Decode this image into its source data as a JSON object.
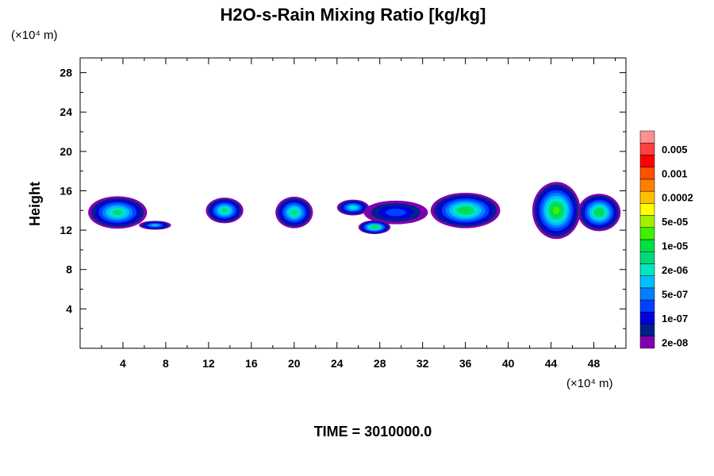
{
  "chart_data": {
    "type": "heatmap",
    "title": "H2O-s-Rain Mixing Ratio [kg/kg]",
    "ylabel": "Height",
    "x_unit": "(×10⁴ m)",
    "y_unit": "(×10⁴ m)",
    "footer": "TIME = 3010000.0",
    "xlim": [
      0,
      51
    ],
    "ylim": [
      0,
      29.5
    ],
    "x_ticks": [
      "4",
      "8",
      "12",
      "16",
      "20",
      "24",
      "28",
      "32",
      "36",
      "40",
      "44",
      "48"
    ],
    "y_ticks": [
      "4",
      "8",
      "12",
      "16",
      "20",
      "24",
      "28"
    ],
    "colorbar": {
      "colors": [
        "#8000b0",
        "#00208c",
        "#0000dc",
        "#0040ff",
        "#0080ff",
        "#00c0ff",
        "#00e8c0",
        "#00d880",
        "#00e040",
        "#40f000",
        "#a0f000",
        "#ffff00",
        "#ffc000",
        "#ff8000",
        "#ff5000",
        "#ff0000",
        "#ff4040",
        "#ff9090"
      ],
      "labels": [
        "2e-08",
        "1e-07",
        "5e-07",
        "2e-06",
        "1e-05",
        "5e-05",
        "0.0002",
        "0.001",
        "0.005"
      ]
    },
    "clouds": [
      {
        "x": 3.5,
        "y": 13.8,
        "w": 5.5,
        "h": 3.3,
        "peak": 7
      },
      {
        "x": 13.5,
        "y": 14.0,
        "w": 3.5,
        "h": 2.6,
        "peak": 7
      },
      {
        "x": 20.0,
        "y": 13.8,
        "w": 3.5,
        "h": 3.2,
        "peak": 7
      },
      {
        "x": 25.5,
        "y": 14.3,
        "w": 3.0,
        "h": 1.6,
        "peak": 6
      },
      {
        "x": 29.5,
        "y": 13.8,
        "w": 6.0,
        "h": 2.4,
        "peak": 3
      },
      {
        "x": 36.0,
        "y": 14.0,
        "w": 6.5,
        "h": 3.6,
        "peak": 8
      },
      {
        "x": 44.5,
        "y": 14.0,
        "w": 4.5,
        "h": 5.8,
        "peak": 9
      },
      {
        "x": 48.5,
        "y": 13.8,
        "w": 4.0,
        "h": 3.8,
        "peak": 8
      },
      {
        "x": 27.5,
        "y": 12.3,
        "w": 3.0,
        "h": 1.4,
        "peak": 8
      },
      {
        "x": 7.0,
        "y": 12.5,
        "w": 3.0,
        "h": 0.9,
        "peak": 5
      }
    ]
  }
}
